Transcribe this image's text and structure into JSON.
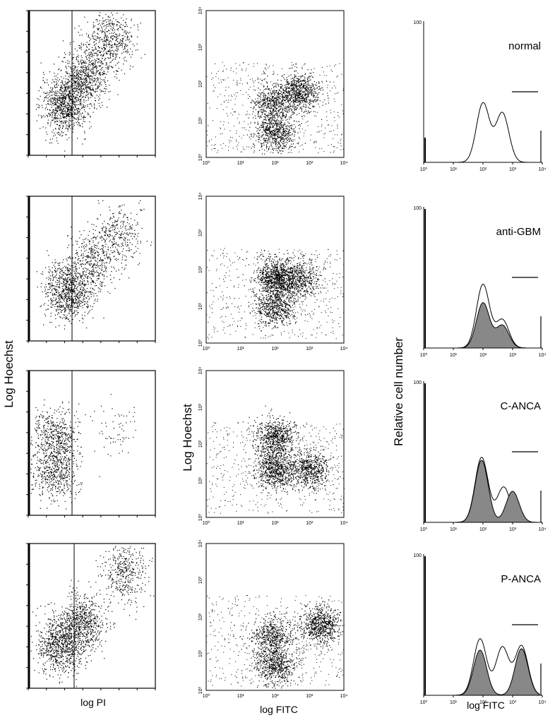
{
  "figure": {
    "left_ylabel": "Log Hoechst",
    "mid_ylabel": "Log Hoechst",
    "right_ylabel": "Relative cell number",
    "left_xlabel": "log PI",
    "mid_xlabel": "log FITC",
    "right_xlabel": "log FITC"
  },
  "chart_data": [
    {
      "type": "scatter",
      "panel": "pi-hoechst",
      "row": "normal",
      "xlabel": "",
      "ylabel": "",
      "clusters": [
        {
          "x": 0.8,
          "y": 0.35,
          "n": 900
        },
        {
          "x": 1.3,
          "y": 0.55,
          "n": 700
        },
        {
          "x": 1.9,
          "y": 0.8,
          "n": 500
        }
      ],
      "gate": "vertical line",
      "grid": false
    },
    {
      "type": "scatter",
      "panel": "fitc-hoechst",
      "row": "normal",
      "xlim": [
        1,
        10000
      ],
      "ylim": [
        1,
        10000
      ],
      "x_ticks": [
        "10⁰",
        "10¹",
        "10²",
        "10³",
        "10⁴"
      ],
      "y_ticks": [
        "10⁰",
        "10¹",
        "10²",
        "10³",
        "10⁴"
      ],
      "clusters": [
        {
          "x": 100,
          "y": 5,
          "n": 600
        },
        {
          "x": 80,
          "y": 30,
          "n": 500
        },
        {
          "x": 500,
          "y": 60,
          "n": 700
        }
      ]
    },
    {
      "type": "line",
      "panel": "histogram",
      "row": "normal",
      "label": "normal",
      "xlim": [
        1,
        10000
      ],
      "ylim": [
        0,
        100
      ],
      "y_ticks": [
        "100"
      ],
      "x_ticks": [
        "10⁰",
        "10¹",
        "10²",
        "10³",
        "10⁴"
      ],
      "series": [
        {
          "values_peaks": [
            {
              "x": 100,
              "y": 42
            },
            {
              "x": 450,
              "y": 35
            }
          ],
          "fill": false
        }
      ]
    },
    {
      "type": "scatter",
      "panel": "pi-hoechst",
      "row": "anti-GBM",
      "clusters": [
        {
          "x": 0.9,
          "y": 0.35,
          "n": 900
        },
        {
          "x": 1.5,
          "y": 0.55,
          "n": 400
        },
        {
          "x": 2.1,
          "y": 0.75,
          "n": 300
        }
      ]
    },
    {
      "type": "scatter",
      "panel": "fitc-hoechst",
      "row": "anti-GBM",
      "xlim": [
        1,
        10000
      ],
      "ylim": [
        1,
        10000
      ],
      "x_ticks": [
        "10⁰",
        "10¹",
        "10²",
        "10³",
        "10⁴"
      ],
      "y_ticks": [
        "10⁰",
        "10¹",
        "10²",
        "10³",
        "10⁴"
      ],
      "clusters": [
        {
          "x": 100,
          "y": 60,
          "n": 900
        },
        {
          "x": 100,
          "y": 10,
          "n": 600
        },
        {
          "x": 500,
          "y": 60,
          "n": 500
        }
      ]
    },
    {
      "type": "area",
      "panel": "histogram",
      "row": "anti-GBM",
      "label": "anti-GBM",
      "xlim": [
        1,
        10000
      ],
      "ylim": [
        0,
        100
      ],
      "y_ticks": [
        "100"
      ],
      "x_ticks": [
        "10⁰",
        "10¹",
        "10²",
        "10³",
        "10⁴"
      ],
      "series": [
        {
          "values_peaks": [
            {
              "x": 100,
              "y": 45
            },
            {
              "x": 450,
              "y": 20
            }
          ],
          "fill": false
        },
        {
          "values_peaks": [
            {
              "x": 100,
              "y": 32
            },
            {
              "x": 450,
              "y": 16
            }
          ],
          "fill": true
        }
      ]
    },
    {
      "type": "scatter",
      "panel": "pi-hoechst",
      "row": "C-ANCA",
      "clusters": [
        {
          "x": 0.6,
          "y": 0.55,
          "n": 500
        },
        {
          "x": 0.6,
          "y": 0.3,
          "n": 500
        },
        {
          "x": 2.0,
          "y": 0.6,
          "n": 60
        }
      ]
    },
    {
      "type": "scatter",
      "panel": "fitc-hoechst",
      "row": "C-ANCA",
      "xlim": [
        1,
        10000
      ],
      "ylim": [
        1,
        10000
      ],
      "x_ticks": [
        "10⁰",
        "10¹",
        "10²",
        "10³",
        "10⁴"
      ],
      "y_ticks": [
        "10⁰",
        "10¹",
        "10²",
        "10³",
        "10⁴"
      ],
      "clusters": [
        {
          "x": 100,
          "y": 150,
          "n": 700
        },
        {
          "x": 100,
          "y": 20,
          "n": 700
        },
        {
          "x": 1000,
          "y": 20,
          "n": 600
        }
      ]
    },
    {
      "type": "area",
      "panel": "histogram",
      "row": "C-ANCA",
      "label": "C-ANCA",
      "xlim": [
        1,
        10000
      ],
      "ylim": [
        0,
        100
      ],
      "y_ticks": [
        "100"
      ],
      "x_ticks": [
        "10⁰",
        "10¹",
        "10²",
        "10³",
        "10⁴"
      ],
      "series": [
        {
          "values_peaks": [
            {
              "x": 90,
              "y": 46
            },
            {
              "x": 500,
              "y": 25
            }
          ],
          "fill": false
        },
        {
          "values_peaks": [
            {
              "x": 90,
              "y": 44
            },
            {
              "x": 1000,
              "y": 22
            }
          ],
          "fill": true
        }
      ]
    },
    {
      "type": "scatter",
      "panel": "pi-hoechst",
      "row": "P-ANCA",
      "clusters": [
        {
          "x": 0.7,
          "y": 0.3,
          "n": 800
        },
        {
          "x": 1.2,
          "y": 0.45,
          "n": 700
        },
        {
          "x": 2.2,
          "y": 0.8,
          "n": 400
        }
      ]
    },
    {
      "type": "scatter",
      "panel": "fitc-hoechst",
      "row": "P-ANCA",
      "xlim": [
        1,
        10000
      ],
      "ylim": [
        1,
        10000
      ],
      "x_ticks": [
        "10⁰",
        "10¹",
        "10²",
        "10³",
        "10⁴"
      ],
      "y_ticks": [
        "10⁰",
        "10¹",
        "10²",
        "10³",
        "10⁴"
      ],
      "clusters": [
        {
          "x": 100,
          "y": 5,
          "n": 600
        },
        {
          "x": 80,
          "y": 30,
          "n": 500
        },
        {
          "x": 2000,
          "y": 60,
          "n": 700
        }
      ]
    },
    {
      "type": "area",
      "panel": "histogram",
      "row": "P-ANCA",
      "label": "P-ANCA",
      "xlim": [
        1,
        10000
      ],
      "ylim": [
        0,
        100
      ],
      "y_ticks": [
        "100"
      ],
      "x_ticks": [
        "10⁰",
        "10¹",
        "10²",
        "10³",
        "10⁴"
      ],
      "series": [
        {
          "values_peaks": [
            {
              "x": 80,
              "y": 40
            },
            {
              "x": 450,
              "y": 34
            },
            {
              "x": 2000,
              "y": 35
            }
          ],
          "fill": false
        },
        {
          "values_peaks": [
            {
              "x": 80,
              "y": 32
            },
            {
              "x": 2000,
              "y": 33
            }
          ],
          "fill": true
        }
      ]
    }
  ]
}
